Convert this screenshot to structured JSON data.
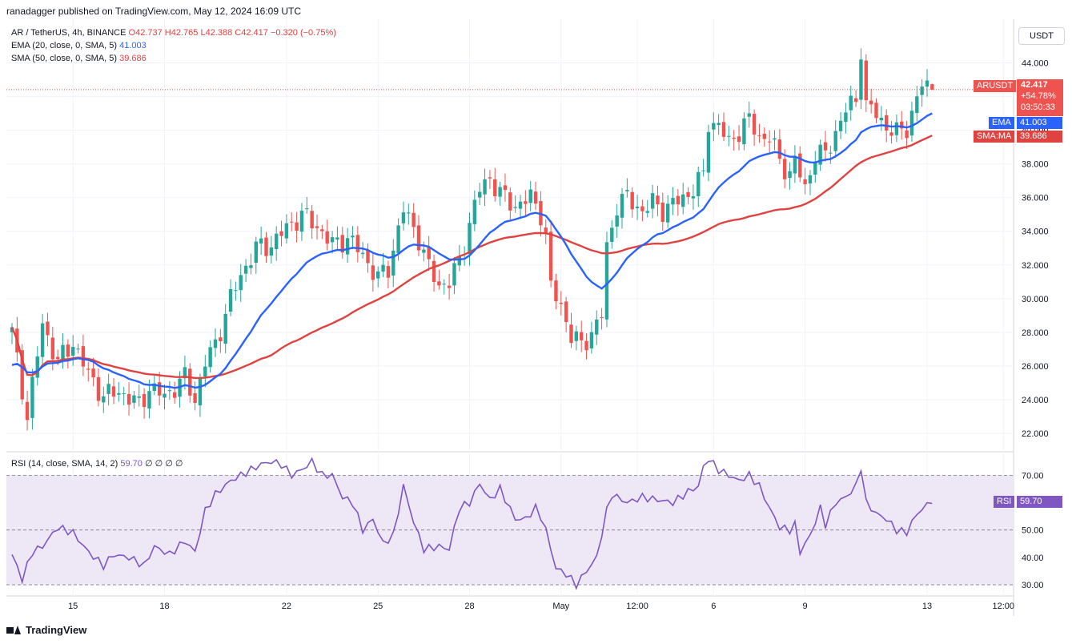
{
  "publisher": "ranadagger published on TradingView.com, May 12, 2024 16:09 UTC",
  "footer_brand": "TradingView",
  "legend": {
    "symbol": "AR / TetherUS, 4h, BINANCE",
    "ohlc": [
      "O42.737",
      "H42.765",
      "L42.388",
      "C42.417",
      "−0.320 (−0.75%)"
    ],
    "ema_label": "EMA (20, close, 0, SMA, 5)",
    "ema_value": "41.003",
    "sma_label": "SMA (50, close, 0, SMA, 5)",
    "sma_value": "39.686",
    "rsi_label": "RSI (14, close, SMA, 14, 2)",
    "rsi_value": "59.70",
    "rsi_extra": "∅ ∅ ∅ ∅"
  },
  "unit": "USDT",
  "tags": {
    "price_symbol": "ARUSDT",
    "price_value": "42.417",
    "price_change": "+54.78%",
    "countdown": "03:50:33",
    "ema_name": "EMA",
    "ema_value": "41.003",
    "sma_name": "SMA:MA",
    "sma_value": "39.686",
    "rsi_name": "RSI",
    "rsi_value": "59.70"
  },
  "colors": {
    "up": "#26a69a",
    "down": "#ef5350",
    "ema": "#2962ff",
    "sma": "#e0423f",
    "rsi": "#7e57c2",
    "rsi_band": "#ede7f6"
  },
  "chart_data": [
    {
      "type": "candlestick",
      "title": "AR / TetherUS, 4h, BINANCE",
      "ylim": [
        21.0,
        46.5
      ],
      "y_ticks": [
        "22.000",
        "24.000",
        "26.000",
        "28.000",
        "30.000",
        "32.000",
        "34.000",
        "36.000",
        "38.000",
        "40.000",
        "42.000",
        "44.000"
      ],
      "x_tick_labels": [
        "15",
        "18",
        "22",
        "25",
        "28",
        "May",
        "12:00",
        "6",
        "9",
        "13",
        "12:00"
      ],
      "x_tick_index": [
        12,
        30,
        54,
        72,
        90,
        108,
        123,
        138,
        156,
        180,
        195
      ],
      "n_bars": 182,
      "grid": true,
      "price_anchors": [
        [
          0,
          28.0
        ],
        [
          3,
          23.0
        ],
        [
          6,
          28.5
        ],
        [
          9,
          26.2
        ],
        [
          12,
          27.4
        ],
        [
          15,
          25.5
        ],
        [
          18,
          24.2
        ],
        [
          21,
          24.5
        ],
        [
          25,
          23.7
        ],
        [
          27,
          24.7
        ],
        [
          30,
          24.2
        ],
        [
          34,
          25.3
        ],
        [
          36,
          24.0
        ],
        [
          38,
          26.2
        ],
        [
          40,
          27.3
        ],
        [
          43,
          30.0
        ],
        [
          45,
          31.4
        ],
        [
          48,
          33.0
        ],
        [
          51,
          33.2
        ],
        [
          54,
          34.2
        ],
        [
          57,
          35.0
        ],
        [
          60,
          34.3
        ],
        [
          63,
          33.2
        ],
        [
          66,
          33.6
        ],
        [
          69,
          32.6
        ],
        [
          72,
          31.2
        ],
        [
          74,
          31.8
        ],
        [
          77,
          35.3
        ],
        [
          80,
          33.6
        ],
        [
          82,
          31.8
        ],
        [
          84,
          30.8
        ],
        [
          86,
          31.0
        ],
        [
          88,
          32.2
        ],
        [
          90,
          34.5
        ],
        [
          92,
          36.5
        ],
        [
          94,
          37.2
        ],
        [
          96,
          36.2
        ],
        [
          99,
          35.5
        ],
        [
          102,
          36.0
        ],
        [
          104,
          35.1
        ],
        [
          105,
          33.7
        ],
        [
          106,
          30.6
        ],
        [
          108,
          29.6
        ],
        [
          110,
          27.8
        ],
        [
          112,
          27.2
        ],
        [
          114,
          28.0
        ],
        [
          116,
          29.0
        ],
        [
          117,
          33.0
        ],
        [
          119,
          35.6
        ],
        [
          121,
          36.0
        ],
        [
          124,
          35.2
        ],
        [
          126,
          35.7
        ],
        [
          128,
          35.3
        ],
        [
          130,
          35.6
        ],
        [
          133,
          36.2
        ],
        [
          136,
          37.3
        ],
        [
          137,
          40.5
        ],
        [
          139,
          40.3
        ],
        [
          141,
          39.2
        ],
        [
          143,
          40.0
        ],
        [
          145,
          40.6
        ],
        [
          147,
          39.6
        ],
        [
          149,
          39.6
        ],
        [
          151,
          38.2
        ],
        [
          153,
          37.4
        ],
        [
          154,
          38.2
        ],
        [
          156,
          36.5
        ],
        [
          158,
          38.6
        ],
        [
          160,
          38.5
        ],
        [
          162,
          39.9
        ],
        [
          164,
          41.2
        ],
        [
          166,
          41.8
        ],
        [
          167,
          44.9
        ],
        [
          168,
          41.4
        ],
        [
          170,
          41.0
        ],
        [
          172,
          40.2
        ],
        [
          174,
          39.8
        ],
        [
          176,
          40.2
        ],
        [
          177,
          41.0
        ],
        [
          179,
          42.7
        ],
        [
          181,
          42.42
        ]
      ],
      "last": {
        "open": 42.737,
        "high": 42.765,
        "low": 42.388,
        "close": 42.417
      },
      "ema20_last": 41.003,
      "sma50_last": 39.686
    },
    {
      "type": "line",
      "title": "RSI (14, close, SMA, 14, 2)",
      "ylim": [
        26.5,
        78.0
      ],
      "y_ticks": [
        "30.00",
        "40.00",
        "50.00",
        "60.00",
        "70.00"
      ],
      "bands": [
        30,
        50,
        70
      ],
      "rsi_anchors": [
        [
          0,
          41.0
        ],
        [
          2,
          32.0
        ],
        [
          4,
          42.0
        ],
        [
          6,
          44.0
        ],
        [
          9,
          51.0
        ],
        [
          12,
          49.0
        ],
        [
          15,
          42.0
        ],
        [
          18,
          37.0
        ],
        [
          20,
          41.0
        ],
        [
          23,
          40.0
        ],
        [
          26,
          37.0
        ],
        [
          28,
          44.0
        ],
        [
          31,
          41.0
        ],
        [
          34,
          46.0
        ],
        [
          36,
          42.0
        ],
        [
          38,
          57.0
        ],
        [
          40,
          63.0
        ],
        [
          43,
          68.0
        ],
        [
          46,
          71.0
        ],
        [
          49,
          74.0
        ],
        [
          51,
          75.0
        ],
        [
          53,
          74.0
        ],
        [
          55,
          70.0
        ],
        [
          57,
          72.0
        ],
        [
          59,
          75.0
        ],
        [
          61,
          70.0
        ],
        [
          63,
          70.0
        ],
        [
          65,
          62.0
        ],
        [
          67,
          60.0
        ],
        [
          69,
          50.0
        ],
        [
          71,
          54.0
        ],
        [
          73,
          45.0
        ],
        [
          75,
          48.0
        ],
        [
          77,
          66.0
        ],
        [
          79,
          53.0
        ],
        [
          81,
          43.0
        ],
        [
          84,
          44.0
        ],
        [
          86,
          43.0
        ],
        [
          88,
          58.0
        ],
        [
          90,
          60.0
        ],
        [
          92,
          67.0
        ],
        [
          94,
          61.0
        ],
        [
          96,
          65.0
        ],
        [
          99,
          54.0
        ],
        [
          101,
          54.0
        ],
        [
          103,
          58.0
        ],
        [
          104,
          55.0
        ],
        [
          105,
          50.0
        ],
        [
          107,
          36.0
        ],
        [
          109,
          34.0
        ],
        [
          111,
          30.0
        ],
        [
          113,
          35.0
        ],
        [
          115,
          40.0
        ],
        [
          117,
          57.0
        ],
        [
          118,
          63.0
        ],
        [
          121,
          60.0
        ],
        [
          124,
          62.0
        ],
        [
          127,
          61.0
        ],
        [
          130,
          60.0
        ],
        [
          133,
          64.0
        ],
        [
          135,
          66.0
        ],
        [
          136,
          73.0
        ],
        [
          137,
          76.0
        ],
        [
          139,
          72.0
        ],
        [
          141,
          70.0
        ],
        [
          143,
          68.0
        ],
        [
          145,
          70.0
        ],
        [
          147,
          66.0
        ],
        [
          149,
          58.0
        ],
        [
          151,
          51.0
        ],
        [
          153,
          50.0
        ],
        [
          154,
          52.0
        ],
        [
          155,
          42.0
        ],
        [
          157,
          48.0
        ],
        [
          159,
          58.0
        ],
        [
          160,
          52.0
        ],
        [
          162,
          60.0
        ],
        [
          164,
          62.0
        ],
        [
          166,
          66.0
        ],
        [
          167,
          73.0
        ],
        [
          168,
          60.0
        ],
        [
          170,
          56.0
        ],
        [
          172,
          54.0
        ],
        [
          174,
          50.0
        ],
        [
          176,
          49.0
        ],
        [
          177,
          53.0
        ],
        [
          179,
          58.0
        ],
        [
          181,
          59.7
        ]
      ],
      "last": 59.7
    }
  ]
}
